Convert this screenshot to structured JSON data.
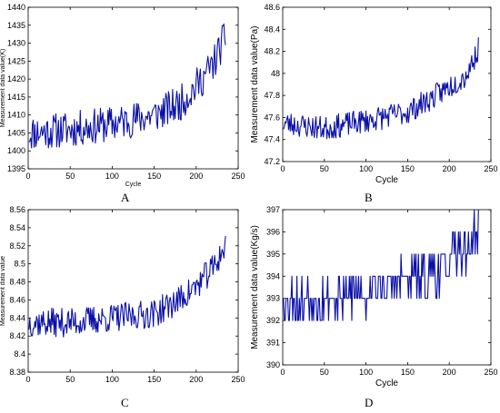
{
  "chart_data": [
    {
      "type": "line",
      "panel_label": "A",
      "xlabel": "Cycle",
      "ylabel": "Measurement data value(K)",
      "xlim": [
        0,
        250
      ],
      "ylim": [
        1395,
        1440
      ],
      "xticks": [
        0,
        50,
        100,
        150,
        200,
        250
      ],
      "yticks": [
        1395,
        1400,
        1405,
        1410,
        1415,
        1420,
        1425,
        1430,
        1435,
        1440
      ],
      "tick_labels_x": [
        "0",
        "50",
        "100",
        "150",
        "200",
        "250"
      ],
      "tick_labels_y": [
        "1395",
        "1400",
        "1405",
        "1410",
        "1415",
        "1420",
        "1425",
        "1430",
        "1435",
        "1440"
      ],
      "grid": false,
      "line_color": "#0a10a8",
      "x_end": 235,
      "trend": [
        [
          0,
          1405
        ],
        [
          50,
          1406
        ],
        [
          100,
          1407.5
        ],
        [
          150,
          1410
        ],
        [
          180,
          1413
        ],
        [
          200,
          1418
        ],
        [
          220,
          1424
        ],
        [
          235,
          1432
        ]
      ],
      "noise": 5,
      "seed": 11
    },
    {
      "type": "line",
      "panel_label": "B",
      "xlabel": "Cycle",
      "ylabel": "Measurement data value(Pa)",
      "xlim": [
        0,
        250
      ],
      "ylim": [
        47.2,
        48.6
      ],
      "xticks": [
        0,
        50,
        100,
        150,
        200,
        250
      ],
      "yticks": [
        47.2,
        47.4,
        47.6,
        47.8,
        48,
        48.2,
        48.4,
        48.6
      ],
      "tick_labels_x": [
        "0",
        "50",
        "100",
        "150",
        "200",
        "250"
      ],
      "tick_labels_y": [
        "47.2",
        "47.4",
        "47.6",
        "47.8",
        "48",
        "48.2",
        "48.4",
        "48.6"
      ],
      "grid": false,
      "line_color": "#0a10a8",
      "x_end": 235,
      "trend": [
        [
          0,
          47.55
        ],
        [
          50,
          47.5
        ],
        [
          100,
          47.57
        ],
        [
          150,
          47.65
        ],
        [
          180,
          47.78
        ],
        [
          200,
          47.88
        ],
        [
          220,
          47.98
        ],
        [
          235,
          48.22
        ]
      ],
      "noise": 0.11,
      "seed": 23
    },
    {
      "type": "line",
      "panel_label": "C",
      "xlabel": "",
      "ylabel": "Measurement data value",
      "xlim": [
        0,
        250
      ],
      "ylim": [
        8.38,
        8.56
      ],
      "xticks": [
        0,
        50,
        100,
        150,
        200,
        250
      ],
      "yticks": [
        8.38,
        8.4,
        8.42,
        8.44,
        8.46,
        8.48,
        8.5,
        8.52,
        8.54,
        8.56
      ],
      "tick_labels_x": [
        "0",
        "50",
        "100",
        "150",
        "200",
        "250"
      ],
      "tick_labels_y": [
        "8.38",
        "8.4",
        "8.42",
        "8.44",
        "8.46",
        "8.48",
        "8.5",
        "8.52",
        "8.54",
        "8.56"
      ],
      "grid": false,
      "line_color": "#0a10a8",
      "x_end": 235,
      "trend": [
        [
          0,
          8.435
        ],
        [
          50,
          8.435
        ],
        [
          100,
          8.44
        ],
        [
          150,
          8.445
        ],
        [
          180,
          8.46
        ],
        [
          200,
          8.475
        ],
        [
          220,
          8.495
        ],
        [
          235,
          8.52
        ]
      ],
      "noise": 0.016,
      "seed": 37
    },
    {
      "type": "line",
      "panel_label": "D",
      "xlabel": "Cycle",
      "ylabel": "Measurement data value(Kg/s)",
      "xlim": [
        0,
        250
      ],
      "ylim": [
        390,
        397
      ],
      "xticks": [
        0,
        50,
        100,
        150,
        200,
        250
      ],
      "yticks": [
        390,
        391,
        392,
        393,
        394,
        395,
        396,
        397
      ],
      "tick_labels_x": [
        "0",
        "50",
        "100",
        "150",
        "200",
        "250"
      ],
      "tick_labels_y": [
        "390",
        "391",
        "392",
        "393",
        "394",
        "395",
        "396",
        "397"
      ],
      "grid": false,
      "line_color": "#0a10a8",
      "x_end": 235,
      "trend": [
        [
          0,
          393
        ],
        [
          50,
          393
        ],
        [
          100,
          393.3
        ],
        [
          150,
          393.8
        ],
        [
          180,
          394.1
        ],
        [
          200,
          394.6
        ],
        [
          220,
          395.2
        ],
        [
          235,
          396.2
        ]
      ],
      "noise": 1.0,
      "integer": true,
      "seed": 53
    }
  ],
  "captions": [
    "A",
    "B",
    "C",
    "D"
  ]
}
